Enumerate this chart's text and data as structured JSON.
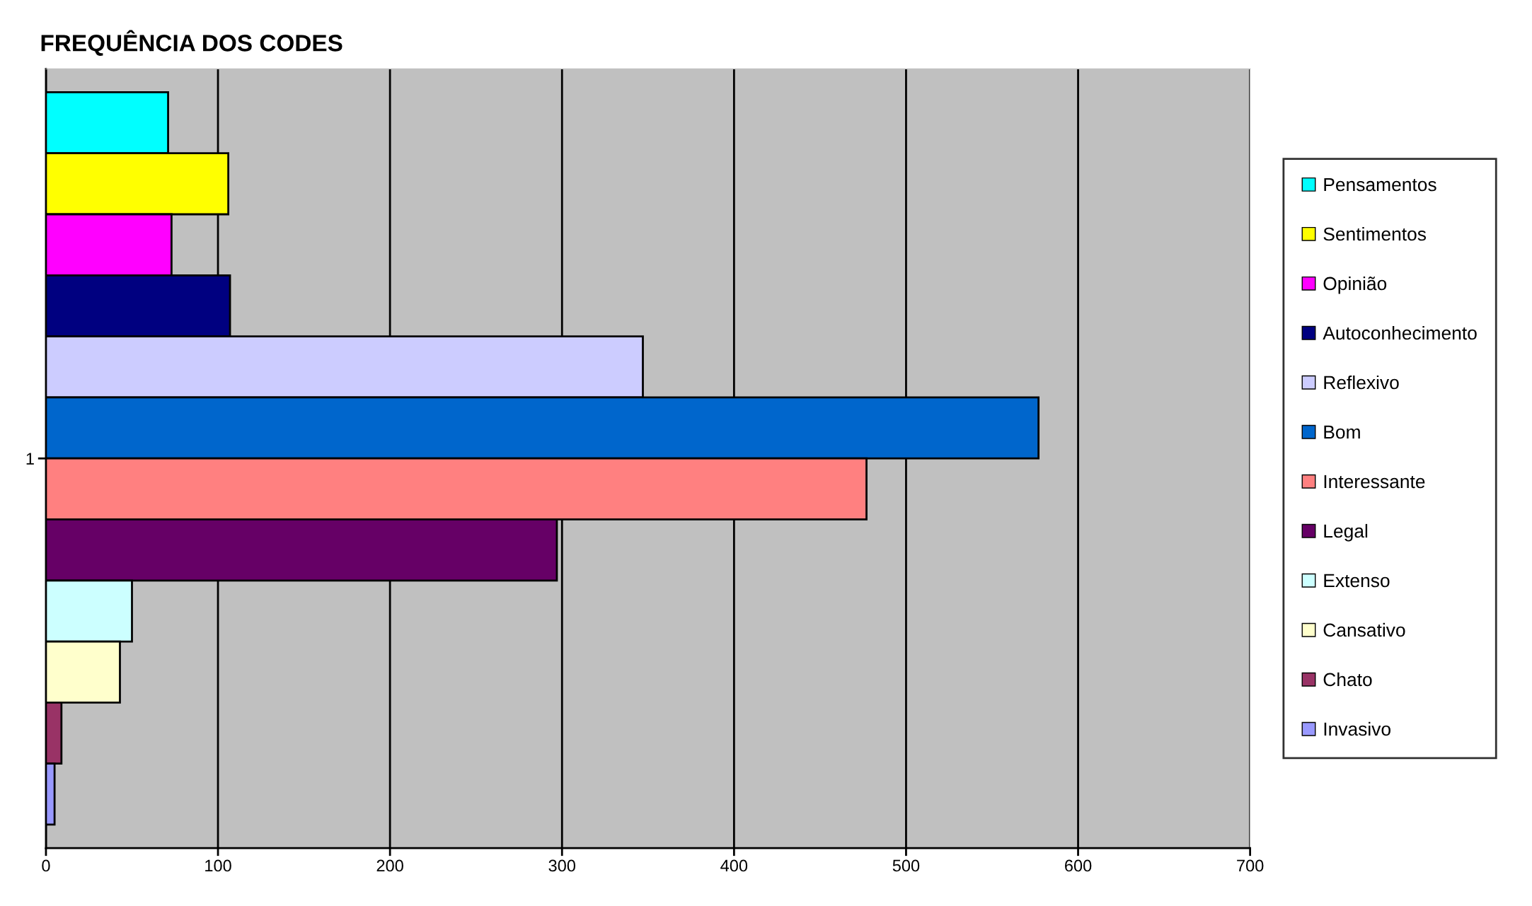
{
  "chart_data": {
    "type": "bar",
    "orientation": "horizontal",
    "title": "FREQUÊNCIA DOS CODES",
    "categories": [
      "1"
    ],
    "series": [
      {
        "name": "Pensamentos",
        "color": "#00ffff",
        "values": [
          71
        ]
      },
      {
        "name": "Sentimentos",
        "color": "#ffff00",
        "values": [
          106
        ]
      },
      {
        "name": "Opinião",
        "color": "#ff00ff",
        "values": [
          73
        ]
      },
      {
        "name": "Autoconhecimento",
        "color": "#000080",
        "values": [
          107
        ]
      },
      {
        "name": "Reflexivo",
        "color": "#ccccff",
        "values": [
          347
        ]
      },
      {
        "name": "Bom",
        "color": "#0066cc",
        "values": [
          577
        ]
      },
      {
        "name": "Interessante",
        "color": "#ff8080",
        "values": [
          477
        ]
      },
      {
        "name": "Legal",
        "color": "#660066",
        "values": [
          297
        ]
      },
      {
        "name": "Extenso",
        "color": "#ccffff",
        "values": [
          50
        ]
      },
      {
        "name": "Cansativo",
        "color": "#ffffcc",
        "values": [
          43
        ]
      },
      {
        "name": "Chato",
        "color": "#993366",
        "values": [
          9
        ]
      },
      {
        "name": "Invasivo",
        "color": "#9999ff",
        "values": [
          5
        ]
      }
    ],
    "xlim": [
      0,
      700
    ],
    "xticks": [
      0,
      100,
      200,
      300,
      400,
      500,
      600,
      700
    ],
    "grid": "x",
    "legend": "right"
  }
}
